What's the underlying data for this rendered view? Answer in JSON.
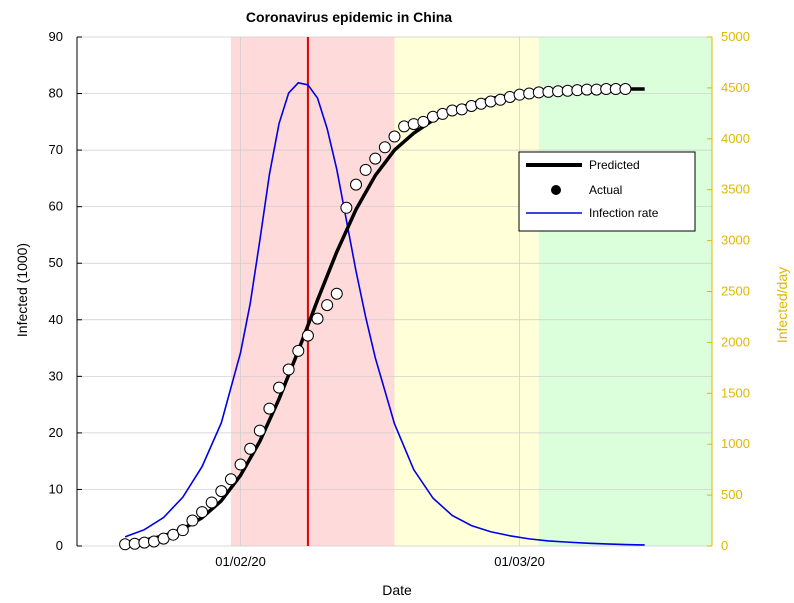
{
  "chart_data": {
    "type": "line",
    "title": "Coronavirus epidemic in China",
    "xlabel": "Date",
    "ylabel": "Infected (1000)",
    "y2label": "Infected/day",
    "x_axis": {
      "type": "date",
      "range": [
        "2020-01-15",
        "2020-03-21"
      ],
      "tick_labels": [
        "01/02/20",
        "01/03/20"
      ],
      "tick_dates": [
        "2020-02-01",
        "2020-03-01"
      ]
    },
    "ylim": [
      0,
      90
    ],
    "y_ticks": [
      "0",
      "10",
      "20",
      "30",
      "40",
      "50",
      "60",
      "70",
      "80",
      "90"
    ],
    "y2lim": [
      0,
      5000
    ],
    "y2_ticks": [
      "0",
      "500",
      "1000",
      "1500",
      "2000",
      "2500",
      "3000",
      "3500",
      "4000",
      "4500",
      "5000"
    ],
    "grid": true,
    "legend_position": "right",
    "legend": [
      "Predicted",
      "Actual",
      "Infection rate"
    ],
    "phases": [
      {
        "start": "2020-01-31",
        "end": "2020-02-17",
        "color": "#ffdada"
      },
      {
        "start": "2020-02-17",
        "end": "2020-03-03",
        "color": "#ffffd8"
      },
      {
        "start": "2020-03-03",
        "end": "2020-03-21",
        "color": "#daffda"
      }
    ],
    "peak_date": "2020-02-08",
    "series": [
      {
        "name": "Predicted",
        "axis": "left",
        "color": "#000000",
        "x": [
          "2020-01-20",
          "2020-01-22",
          "2020-01-24",
          "2020-01-26",
          "2020-01-28",
          "2020-01-30",
          "2020-02-01",
          "2020-02-03",
          "2020-02-05",
          "2020-02-07",
          "2020-02-09",
          "2020-02-11",
          "2020-02-13",
          "2020-02-15",
          "2020-02-17",
          "2020-02-19",
          "2020-02-21",
          "2020-02-23",
          "2020-02-25",
          "2020-02-27",
          "2020-02-29",
          "2020-03-02",
          "2020-03-04",
          "2020-03-06",
          "2020-03-08",
          "2020-03-10",
          "2020-03-12",
          "2020-03-14"
        ],
        "values": [
          0.6,
          1.0,
          1.8,
          3.0,
          5.0,
          8.0,
          12.5,
          18.5,
          26.0,
          34.5,
          43.5,
          52.0,
          59.5,
          65.5,
          70.0,
          73.0,
          75.3,
          77.0,
          78.2,
          79.1,
          79.7,
          80.1,
          80.4,
          80.6,
          80.7,
          80.75,
          80.8,
          80.8
        ]
      },
      {
        "name": "Actual",
        "axis": "left",
        "color": "#000000",
        "x": [
          "2020-01-20",
          "2020-01-21",
          "2020-01-22",
          "2020-01-23",
          "2020-01-24",
          "2020-01-25",
          "2020-01-26",
          "2020-01-27",
          "2020-01-28",
          "2020-01-29",
          "2020-01-30",
          "2020-01-31",
          "2020-02-01",
          "2020-02-02",
          "2020-02-03",
          "2020-02-04",
          "2020-02-05",
          "2020-02-06",
          "2020-02-07",
          "2020-02-08",
          "2020-02-09",
          "2020-02-10",
          "2020-02-11",
          "2020-02-12",
          "2020-02-13",
          "2020-02-14",
          "2020-02-15",
          "2020-02-16",
          "2020-02-17",
          "2020-02-18",
          "2020-02-19",
          "2020-02-20",
          "2020-02-21",
          "2020-02-22",
          "2020-02-23",
          "2020-02-24",
          "2020-02-25",
          "2020-02-26",
          "2020-02-27",
          "2020-02-28",
          "2020-02-29",
          "2020-03-01",
          "2020-03-02",
          "2020-03-03",
          "2020-03-04",
          "2020-03-05",
          "2020-03-06",
          "2020-03-07",
          "2020-03-08",
          "2020-03-09",
          "2020-03-10",
          "2020-03-11",
          "2020-03-12"
        ],
        "values": [
          0.3,
          0.4,
          0.6,
          0.8,
          1.3,
          2.0,
          2.8,
          4.5,
          6.0,
          7.7,
          9.7,
          11.8,
          14.4,
          17.2,
          20.4,
          24.3,
          28.0,
          31.2,
          34.5,
          37.2,
          40.2,
          42.6,
          44.6,
          59.8,
          63.9,
          66.5,
          68.5,
          70.5,
          72.4,
          74.2,
          74.6,
          75.0,
          75.9,
          76.4,
          77.0,
          77.2,
          77.8,
          78.2,
          78.6,
          78.9,
          79.4,
          79.8,
          80.0,
          80.2,
          80.3,
          80.4,
          80.5,
          80.6,
          80.7,
          80.7,
          80.8,
          80.8,
          80.8
        ]
      },
      {
        "name": "Infection rate",
        "axis": "right",
        "color": "#0000e6",
        "x": [
          "2020-01-20",
          "2020-01-22",
          "2020-01-24",
          "2020-01-26",
          "2020-01-28",
          "2020-01-30",
          "2020-02-01",
          "2020-02-02",
          "2020-02-03",
          "2020-02-04",
          "2020-02-05",
          "2020-02-06",
          "2020-02-07",
          "2020-02-08",
          "2020-02-09",
          "2020-02-10",
          "2020-02-11",
          "2020-02-12",
          "2020-02-13",
          "2020-02-14",
          "2020-02-15",
          "2020-02-17",
          "2020-02-19",
          "2020-02-21",
          "2020-02-23",
          "2020-02-25",
          "2020-02-27",
          "2020-02-29",
          "2020-03-02",
          "2020-03-04",
          "2020-03-06",
          "2020-03-08",
          "2020-03-10",
          "2020-03-12",
          "2020-03-14"
        ],
        "values": [
          90,
          160,
          280,
          480,
          780,
          1210,
          1900,
          2380,
          3000,
          3650,
          4150,
          4450,
          4550,
          4530,
          4400,
          4100,
          3700,
          3200,
          2700,
          2250,
          1850,
          1200,
          750,
          470,
          300,
          200,
          140,
          100,
          70,
          50,
          38,
          28,
          20,
          14,
          10
        ]
      }
    ]
  }
}
